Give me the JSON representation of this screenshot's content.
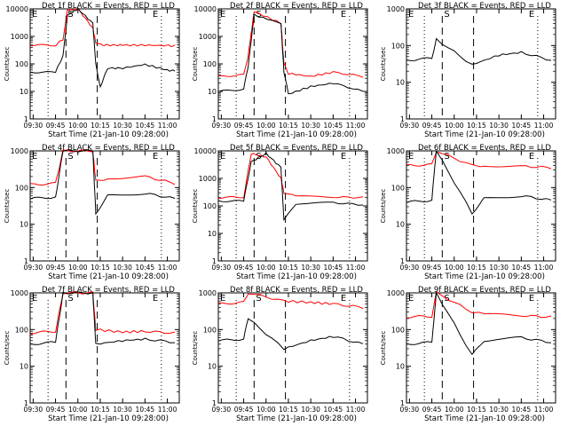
{
  "figure": {
    "background": "#ffffff",
    "axis_color": "#000000",
    "events_color": "#000000",
    "lld_color": "#ff0000"
  },
  "chart_data": [
    {
      "type": "line",
      "title": "Det 1f BLACK = Events, RED = LLD",
      "xlabel": "Start Time (21-Jan-10 09:28:00)",
      "ylabel": "Counts/sec",
      "ylim": [
        1,
        10000
      ],
      "yscale": "log",
      "yticks": [
        "1",
        "10",
        "100",
        "1000",
        "10000"
      ],
      "xticks": [
        "09:30",
        "09:45",
        "10:00",
        "10:15",
        "10:30",
        "10:45",
        "11:00"
      ],
      "markers": [
        "E",
        "S",
        "E"
      ],
      "series": [
        {
          "values": [
            {
              "t": "09:28",
              "events": 50,
              "lld": 480
            },
            {
              "t": "09:45",
              "events": 50,
              "lld": 480
            },
            {
              "t": "09:50",
              "events": 200,
              "lld": 800
            },
            {
              "t": "09:53",
              "events": 6000,
              "lld": 9000
            },
            {
              "t": "10:00",
              "events": 10000,
              "lld": 10000
            },
            {
              "t": "10:10",
              "events": 3000,
              "lld": 2000
            },
            {
              "t": "10:12",
              "events": 100,
              "lld": 600
            },
            {
              "t": "10:15",
              "events": 15,
              "lld": 500
            },
            {
              "t": "10:20",
              "events": 70,
              "lld": 480
            },
            {
              "t": "10:30",
              "events": 70,
              "lld": 480
            },
            {
              "t": "10:45",
              "events": 95,
              "lld": 480
            },
            {
              "t": "11:00",
              "events": 60,
              "lld": 460
            },
            {
              "t": "11:05",
              "events": 55,
              "lld": 450
            }
          ]
        }
      ]
    },
    {
      "type": "line",
      "title": "Det 2f BLACK = Events, RED = LLD",
      "xlabel": "Start Time (21-Jan-10 09:28:00)",
      "ylabel": "Counts/sec",
      "ylim": [
        1,
        10000
      ],
      "yscale": "log",
      "yticks": [
        "1",
        "10",
        "100",
        "1000",
        "10000"
      ],
      "xticks": [
        "09:30",
        "09:45",
        "10:00",
        "10:15",
        "10:30",
        "10:45",
        "11:00"
      ],
      "markers": [
        "E",
        "S",
        "E"
      ],
      "series": [
        {
          "values": [
            {
              "t": "09:28",
              "events": 10,
              "lld": 35
            },
            {
              "t": "09:45",
              "events": 12,
              "lld": 40
            },
            {
              "t": "09:48",
              "events": 80,
              "lld": 200
            },
            {
              "t": "09:52",
              "events": 6000,
              "lld": 8000
            },
            {
              "t": "10:10",
              "events": 3000,
              "lld": 3000
            },
            {
              "t": "10:12",
              "events": 50,
              "lld": 100
            },
            {
              "t": "10:15",
              "events": 8,
              "lld": 45
            },
            {
              "t": "10:30",
              "events": 15,
              "lld": 35
            },
            {
              "t": "10:45",
              "events": 20,
              "lld": 50
            },
            {
              "t": "11:05",
              "events": 10,
              "lld": 35
            }
          ]
        }
      ]
    },
    {
      "type": "line",
      "title": "Det 3f BLACK = Events, RED = LLD",
      "xlabel": "Start Time (21-Jan-10 09:28:00)",
      "ylabel": "Counts/sec",
      "ylim": [
        1,
        1000
      ],
      "yscale": "log",
      "yticks": [
        "1",
        "10",
        "100",
        "1000"
      ],
      "xticks": [
        "09:30",
        "09:45",
        "10:00",
        "10:15",
        "10:30",
        "10:45",
        "11:00"
      ],
      "markers": [
        "E",
        "S",
        "E"
      ],
      "series": [
        {
          "values": [
            {
              "t": "09:28",
              "events": 40
            },
            {
              "t": "09:45",
              "events": 45
            },
            {
              "t": "09:48",
              "events": 150
            },
            {
              "t": "10:12",
              "events": 30
            },
            {
              "t": "10:30",
              "events": 55
            },
            {
              "t": "10:45",
              "events": 65
            },
            {
              "t": "11:05",
              "events": 40
            }
          ]
        }
      ]
    },
    {
      "type": "line",
      "title": "Det 4f BLACK = Events, RED = LLD",
      "xlabel": "Start Time (21-Jan-10 09:28:00)",
      "ylabel": "Counts/sec",
      "ylim": [
        1,
        1000
      ],
      "yscale": "log",
      "yticks": [
        "1",
        "10",
        "100",
        "1000"
      ],
      "xticks": [
        "09:30",
        "09:45",
        "10:00",
        "10:15",
        "10:30",
        "10:45",
        "11:00"
      ],
      "markers": [
        "E",
        "S",
        "E"
      ],
      "series": [
        {
          "values": [
            {
              "t": "09:28",
              "events": 50,
              "lld": 120
            },
            {
              "t": "09:45",
              "events": 55,
              "lld": 130
            },
            {
              "t": "09:50",
              "events": 1000,
              "lld": 1000
            },
            {
              "t": "10:10",
              "events": 1000,
              "lld": 1000
            },
            {
              "t": "10:12",
              "events": 20,
              "lld": 150
            },
            {
              "t": "10:20",
              "events": 60,
              "lld": 180
            },
            {
              "t": "10:45",
              "events": 70,
              "lld": 200
            },
            {
              "t": "11:05",
              "events": 50,
              "lld": 130
            }
          ]
        }
      ]
    },
    {
      "type": "line",
      "title": "Det 5f BLACK = Events, RED = LLD",
      "xlabel": "Start Time (21-Jan-10 09:28:00)",
      "ylabel": "Counts/sec",
      "ylim": [
        1,
        10000
      ],
      "yscale": "log",
      "yticks": [
        "1",
        "10",
        "100",
        "1000",
        "10000"
      ],
      "xticks": [
        "09:30",
        "09:45",
        "10:00",
        "10:15",
        "10:30",
        "10:45",
        "11:00"
      ],
      "markers": [
        "E",
        "S",
        "E"
      ],
      "series": [
        {
          "values": [
            {
              "t": "09:28",
              "events": 150,
              "lld": 200
            },
            {
              "t": "09:45",
              "events": 150,
              "lld": 210
            },
            {
              "t": "09:50",
              "events": 4000,
              "lld": 8000
            },
            {
              "t": "10:00",
              "events": 8000,
              "lld": 6000
            },
            {
              "t": "10:10",
              "events": 2500,
              "lld": 1000
            },
            {
              "t": "10:12",
              "events": 30,
              "lld": 300
            },
            {
              "t": "10:20",
              "events": 120,
              "lld": 220
            },
            {
              "t": "10:45",
              "events": 130,
              "lld": 210
            },
            {
              "t": "11:05",
              "events": 110,
              "lld": 200
            }
          ]
        }
      ]
    },
    {
      "type": "line",
      "title": "Det 6f BLACK = Events, RED = LLD",
      "xlabel": "Start Time (21-Jan-10 09:28:00)",
      "ylabel": "Counts/sec",
      "ylim": [
        1,
        1000
      ],
      "yscale": "log",
      "yticks": [
        "1",
        "10",
        "100",
        "1000"
      ],
      "xticks": [
        "09:30",
        "09:45",
        "10:00",
        "10:15",
        "10:30",
        "10:45",
        "11:00"
      ],
      "markers": [
        "E",
        "S",
        "E"
      ],
      "series": [
        {
          "values": [
            {
              "t": "09:28",
              "events": 40,
              "lld": 400
            },
            {
              "t": "09:45",
              "events": 45,
              "lld": 420
            },
            {
              "t": "09:48",
              "events": 1000,
              "lld": 1000
            },
            {
              "t": "10:12",
              "events": 20,
              "lld": 400
            },
            {
              "t": "10:20",
              "events": 50,
              "lld": 400
            },
            {
              "t": "10:45",
              "events": 60,
              "lld": 380
            },
            {
              "t": "11:05",
              "events": 45,
              "lld": 350
            }
          ]
        }
      ]
    },
    {
      "type": "line",
      "title": "Det 7f BLACK = Events, RED = LLD",
      "xlabel": "Start Time (21-Jan-10 09:28:00)",
      "ylabel": "Counts/sec",
      "ylim": [
        1,
        1000
      ],
      "yscale": "log",
      "yticks": [
        "1",
        "10",
        "100",
        "1000"
      ],
      "xticks": [
        "09:30",
        "09:45",
        "10:00",
        "10:15",
        "10:30",
        "10:45",
        "11:00"
      ],
      "markers": [
        "E",
        "S",
        "E"
      ],
      "series": [
        {
          "values": [
            {
              "t": "09:28",
              "events": 40,
              "lld": 80
            },
            {
              "t": "09:45",
              "events": 45,
              "lld": 90
            },
            {
              "t": "09:50",
              "events": 1000,
              "lld": 1000
            },
            {
              "t": "10:10",
              "events": 1000,
              "lld": 1000
            },
            {
              "t": "10:12",
              "events": 40,
              "lld": 100
            },
            {
              "t": "10:30",
              "events": 50,
              "lld": 85
            },
            {
              "t": "10:45",
              "events": 55,
              "lld": 90
            },
            {
              "t": "11:05",
              "events": 45,
              "lld": 80
            }
          ]
        }
      ]
    },
    {
      "type": "line",
      "title": "Det 8f BLACK = Events, RED = LLD",
      "xlabel": "Start Time (21-Jan-10 09:28:00)",
      "ylabel": "Counts/sec",
      "ylim": [
        1,
        1000
      ],
      "yscale": "log",
      "yticks": [
        "1",
        "10",
        "100",
        "1000"
      ],
      "xticks": [
        "09:30",
        "09:45",
        "10:00",
        "10:15",
        "10:30",
        "10:45",
        "11:00"
      ],
      "markers": [
        "E",
        "S",
        "E"
      ],
      "series": [
        {
          "values": [
            {
              "t": "09:28",
              "events": 50,
              "lld": 500
            },
            {
              "t": "09:45",
              "events": 55,
              "lld": 550
            },
            {
              "t": "09:48",
              "events": 200,
              "lld": 1000
            },
            {
              "t": "10:12",
              "events": 30,
              "lld": 600
            },
            {
              "t": "10:30",
              "events": 50,
              "lld": 550
            },
            {
              "t": "10:45",
              "events": 65,
              "lld": 500
            },
            {
              "t": "11:05",
              "events": 40,
              "lld": 400
            }
          ]
        }
      ]
    },
    {
      "type": "line",
      "title": "Det 9f BLACK = Events, RED = LLD",
      "xlabel": "Start Time (21-Jan-10 09:28:00)",
      "ylabel": "Counts/sec",
      "ylim": [
        1,
        1000
      ],
      "yscale": "log",
      "yticks": [
        "1",
        "10",
        "100",
        "1000"
      ],
      "xticks": [
        "09:30",
        "09:45",
        "10:00",
        "10:15",
        "10:30",
        "10:45",
        "11:00"
      ],
      "markers": [
        "E",
        "S",
        "E"
      ],
      "series": [
        {
          "values": [
            {
              "t": "09:28",
              "events": 40,
              "lld": 220
            },
            {
              "t": "09:45",
              "events": 45,
              "lld": 230
            },
            {
              "t": "09:48",
              "events": 1000,
              "lld": 1000
            },
            {
              "t": "10:12",
              "events": 20,
              "lld": 300
            },
            {
              "t": "10:20",
              "events": 50,
              "lld": 260
            },
            {
              "t": "10:45",
              "events": 60,
              "lld": 240
            },
            {
              "t": "11:05",
              "events": 45,
              "lld": 220
            }
          ]
        }
      ]
    }
  ]
}
